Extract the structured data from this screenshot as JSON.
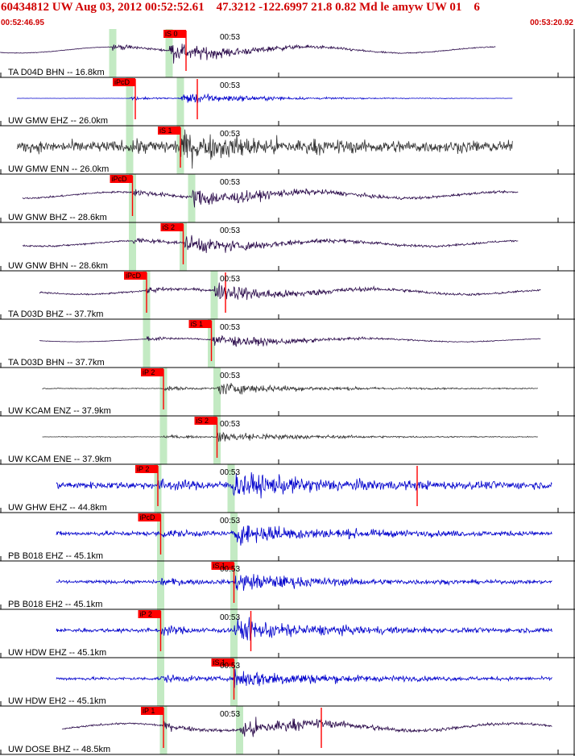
{
  "header": {
    "title": "60434812 UW Aug 03, 2012 00:52:52.61    47.3212 -122.6997 21.8 0.82 Md le amyw UW 01    6",
    "start_time": "00:52:46.95",
    "end_time": "00:53:20.92"
  },
  "colors": {
    "header_text": "#d00000",
    "pick": "#ff0000",
    "window": "#b8e6b8",
    "trace_blue": "#0000cc",
    "trace_purple": "#2a0a4a",
    "trace_gray": "#333333"
  },
  "chart_data": {
    "type": "line",
    "title": "60434812 UW Aug 03, 2012 00:52:52.61    47.3212 -122.6997 21.8 0.82 Md le amyw UW 01    6",
    "xlim": [
      "00:52:46.95",
      "00:53:20.92"
    ],
    "tick_label": "00:53",
    "grid": false,
    "legend": "none",
    "series": [
      {
        "name": "TA D04D BHN -- 16.8km",
        "color": "purple",
        "amp": 0.75,
        "noise": 0.03,
        "p": 0.2,
        "s": 0.3,
        "start": 0.0,
        "end": 0.88,
        "picks": [
          {
            "label": "iS 0",
            "t": 0.33,
            "s": 0.3
          }
        ]
      },
      {
        "name": "UW GMW EHZ -- 26.0km",
        "color": "blue",
        "amp": 0.45,
        "noise": 0.02,
        "p": 0.23,
        "s": 0.32,
        "start": 0.03,
        "end": 0.91,
        "picks": [
          {
            "label": "iPcD",
            "t": 0.24,
            "s": 0.23
          },
          {
            "label": "",
            "t": 0.35,
            "s": 0.32
          }
        ]
      },
      {
        "name": "UW GMW ENN -- 26.0km",
        "color": "gray",
        "amp": 0.85,
        "noise": 0.55,
        "p": 0.23,
        "s": 0.32,
        "start": 0.03,
        "end": 0.91,
        "picks": [
          {
            "label": "iS 1",
            "t": 0.32,
            "s": 0.32
          }
        ]
      },
      {
        "name": "UW GNW BHZ -- 28.6km",
        "color": "purple",
        "amp": 0.75,
        "noise": 0.1,
        "p": 0.235,
        "s": 0.34,
        "start": 0.04,
        "end": 0.92,
        "picks": [
          {
            "label": "iPcD",
            "t": 0.235,
            "s": 0.235
          }
        ]
      },
      {
        "name": "UW GNW BHN -- 28.6km",
        "color": "purple",
        "amp": 0.7,
        "noise": 0.1,
        "p": 0.235,
        "s": 0.325,
        "start": 0.04,
        "end": 0.92,
        "picks": [
          {
            "label": "iS 2",
            "t": 0.325,
            "s": 0.325
          }
        ]
      },
      {
        "name": "TA D03D BHZ -- 37.7km",
        "color": "purple",
        "amp": 0.7,
        "noise": 0.1,
        "p": 0.26,
        "s": 0.38,
        "start": 0.07,
        "end": 0.96,
        "picks": [
          {
            "label": "iPcD",
            "t": 0.26,
            "s": 0.26
          },
          {
            "label": "",
            "t": 0.4,
            "s": 0.38
          }
        ]
      },
      {
        "name": "TA D03D BHN -- 37.7km",
        "color": "purple",
        "amp": 0.55,
        "noise": 0.03,
        "p": 0.26,
        "s": 0.375,
        "start": 0.07,
        "end": 0.96,
        "picks": [
          {
            "label": "iS 1",
            "t": 0.375,
            "s": 0.375
          }
        ]
      },
      {
        "name": "UW KCAM ENZ -- 37.9km",
        "color": "gray",
        "amp": 0.5,
        "noise": 0.08,
        "p": 0.29,
        "s": 0.385,
        "start": 0.075,
        "end": 0.955,
        "picks": [
          {
            "label": "iP 2",
            "t": 0.29,
            "s": 0.26
          }
        ]
      },
      {
        "name": "UW KCAM ENE -- 37.9km",
        "color": "gray",
        "amp": 0.45,
        "noise": 0.06,
        "p": 0.29,
        "s": 0.385,
        "start": 0.075,
        "end": 0.955,
        "picks": [
          {
            "label": "iS 2",
            "t": 0.385,
            "s": 0.375
          }
        ]
      },
      {
        "name": "UW GHW EHZ -- 44.8km",
        "color": "blue",
        "amp": 0.85,
        "noise": 0.35,
        "p": 0.28,
        "s": 0.41,
        "start": 0.1,
        "end": 0.98,
        "picks": [
          {
            "label": "iP 2",
            "t": 0.28,
            "s": 0.28
          },
          {
            "label": "",
            "t": 0.74,
            "s": 0.41
          }
        ]
      },
      {
        "name": "PB B018 EHZ -- 45.1km",
        "color": "blue",
        "amp": 0.75,
        "noise": 0.25,
        "p": 0.285,
        "s": 0.415,
        "start": 0.1,
        "end": 0.98,
        "picks": [
          {
            "label": "iPcD",
            "t": 0.285,
            "s": 0.285
          }
        ]
      },
      {
        "name": "PB B018 EH2 -- 45.1km",
        "color": "blue",
        "amp": 0.7,
        "noise": 0.2,
        "p": 0.285,
        "s": 0.415,
        "start": 0.1,
        "end": 0.98,
        "picks": [
          {
            "label": "iS 1",
            "t": 0.415,
            "s": 0.415
          }
        ]
      },
      {
        "name": "UW HDW EHZ -- 45.1km",
        "color": "blue",
        "amp": 0.8,
        "noise": 0.22,
        "p": 0.285,
        "s": 0.415,
        "start": 0.1,
        "end": 0.98,
        "picks": [
          {
            "label": "iP 2",
            "t": 0.285,
            "s": 0.285
          },
          {
            "label": "",
            "t": 0.445,
            "s": 0.415
          }
        ]
      },
      {
        "name": "UW HDW EH2 -- 45.1km",
        "color": "blue",
        "amp": 0.75,
        "noise": 0.18,
        "p": 0.285,
        "s": 0.415,
        "start": 0.1,
        "end": 0.98,
        "picks": [
          {
            "label": "iS 1",
            "t": 0.415,
            "s": 0.415
          }
        ]
      },
      {
        "name": "UW DOSE BHZ -- 48.5km",
        "color": "purple",
        "amp": 0.8,
        "noise": 0.1,
        "p": 0.29,
        "s": 0.425,
        "start": 0.11,
        "end": 0.98,
        "picks": [
          {
            "label": "iP 1",
            "t": 0.29,
            "s": 0.29
          },
          {
            "label": "",
            "t": 0.57,
            "s": 0.425
          }
        ]
      }
    ]
  }
}
